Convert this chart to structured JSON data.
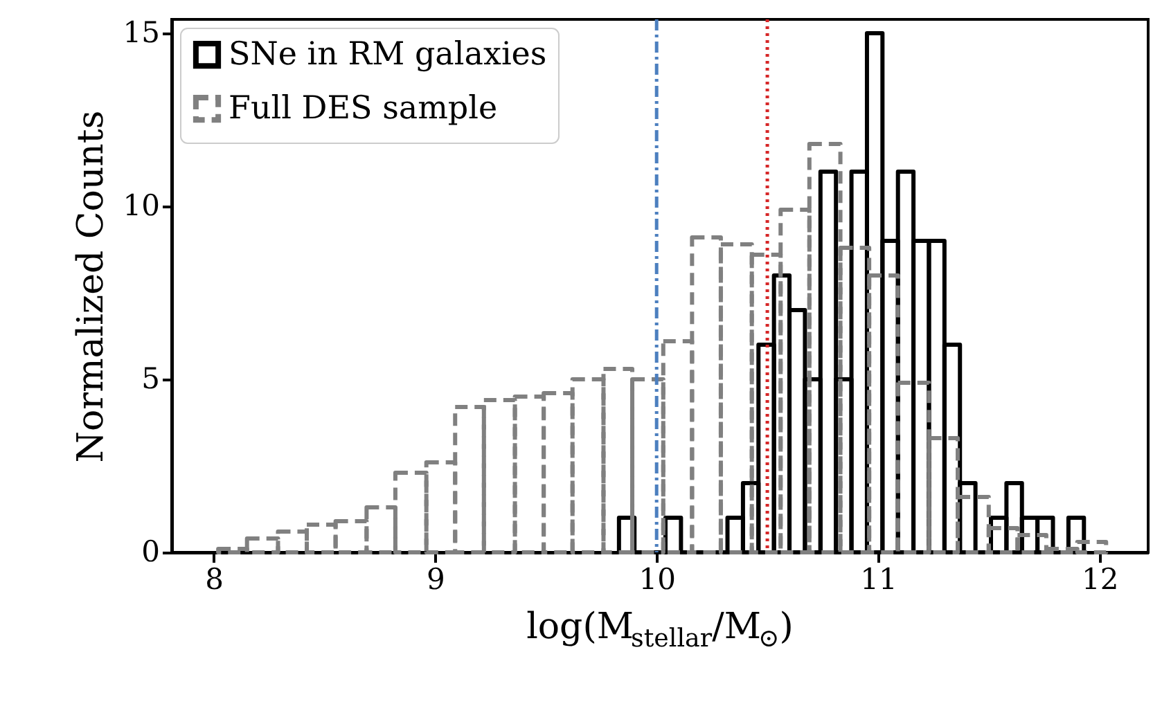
{
  "chart_data": {
    "type": "histogram",
    "xlabel": "log(M$_{stellar}$/M$_{⊙}$)",
    "ylabel": "Normalized Counts",
    "xlim": [
      7.81,
      12.22
    ],
    "ylim": [
      0,
      15.4
    ],
    "xticks": [
      8,
      9,
      10,
      11,
      12
    ],
    "yticks": [
      0,
      5,
      10,
      15
    ],
    "grid": false,
    "legend": "top left",
    "bins": [
      9.83,
      9.9,
      9.97,
      10.04,
      10.11,
      10.18,
      10.25,
      10.32,
      10.39,
      10.46,
      10.53,
      10.6,
      10.67,
      10.74,
      10.81,
      10.88,
      10.95,
      11.02,
      11.09,
      11.16,
      11.23,
      11.3,
      11.37,
      11.44,
      11.51,
      11.58,
      11.65,
      11.72,
      11.79,
      11.86,
      11.93
    ],
    "series": [
      {
        "name": "SNe in RM galaxies",
        "color": "#000000",
        "line_style": "solid",
        "values": [
          1,
          0,
          0,
          1,
          0,
          0,
          0,
          1,
          2,
          6,
          8,
          7,
          5,
          11,
          5,
          11,
          15,
          9,
          11,
          9,
          9,
          6,
          2,
          0,
          1,
          2,
          1,
          1,
          0,
          1
        ]
      },
      {
        "name": "Full DES sample",
        "color": "#808080",
        "line_style": "dashed",
        "bins": [
          8.02,
          8.15,
          8.29,
          8.42,
          8.55,
          8.69,
          8.82,
          8.96,
          9.09,
          9.22,
          9.36,
          9.49,
          9.62,
          9.76,
          9.89,
          10.03,
          10.16,
          10.29,
          10.43,
          10.56,
          10.69,
          10.83,
          10.96,
          11.09,
          11.23,
          11.36,
          11.5,
          11.63,
          11.76,
          11.9,
          12.03
        ],
        "values": [
          0.1,
          0.4,
          0.6,
          0.8,
          0.9,
          1.3,
          2.3,
          2.6,
          4.2,
          4.4,
          4.5,
          4.6,
          5.0,
          5.3,
          5.0,
          6.1,
          9.1,
          8.9,
          8.6,
          9.9,
          11.8,
          8.8,
          8.0,
          4.9,
          3.3,
          1.6,
          0.7,
          0.5,
          0.1,
          0.3
        ]
      }
    ],
    "ref_lines": [
      {
        "axis": "x",
        "value": 10,
        "color": "#4c7fbf",
        "line_style": "dashdot"
      },
      {
        "axis": "x",
        "value": 10.5,
        "color": "#d62728",
        "line_style": "dotted"
      }
    ]
  }
}
